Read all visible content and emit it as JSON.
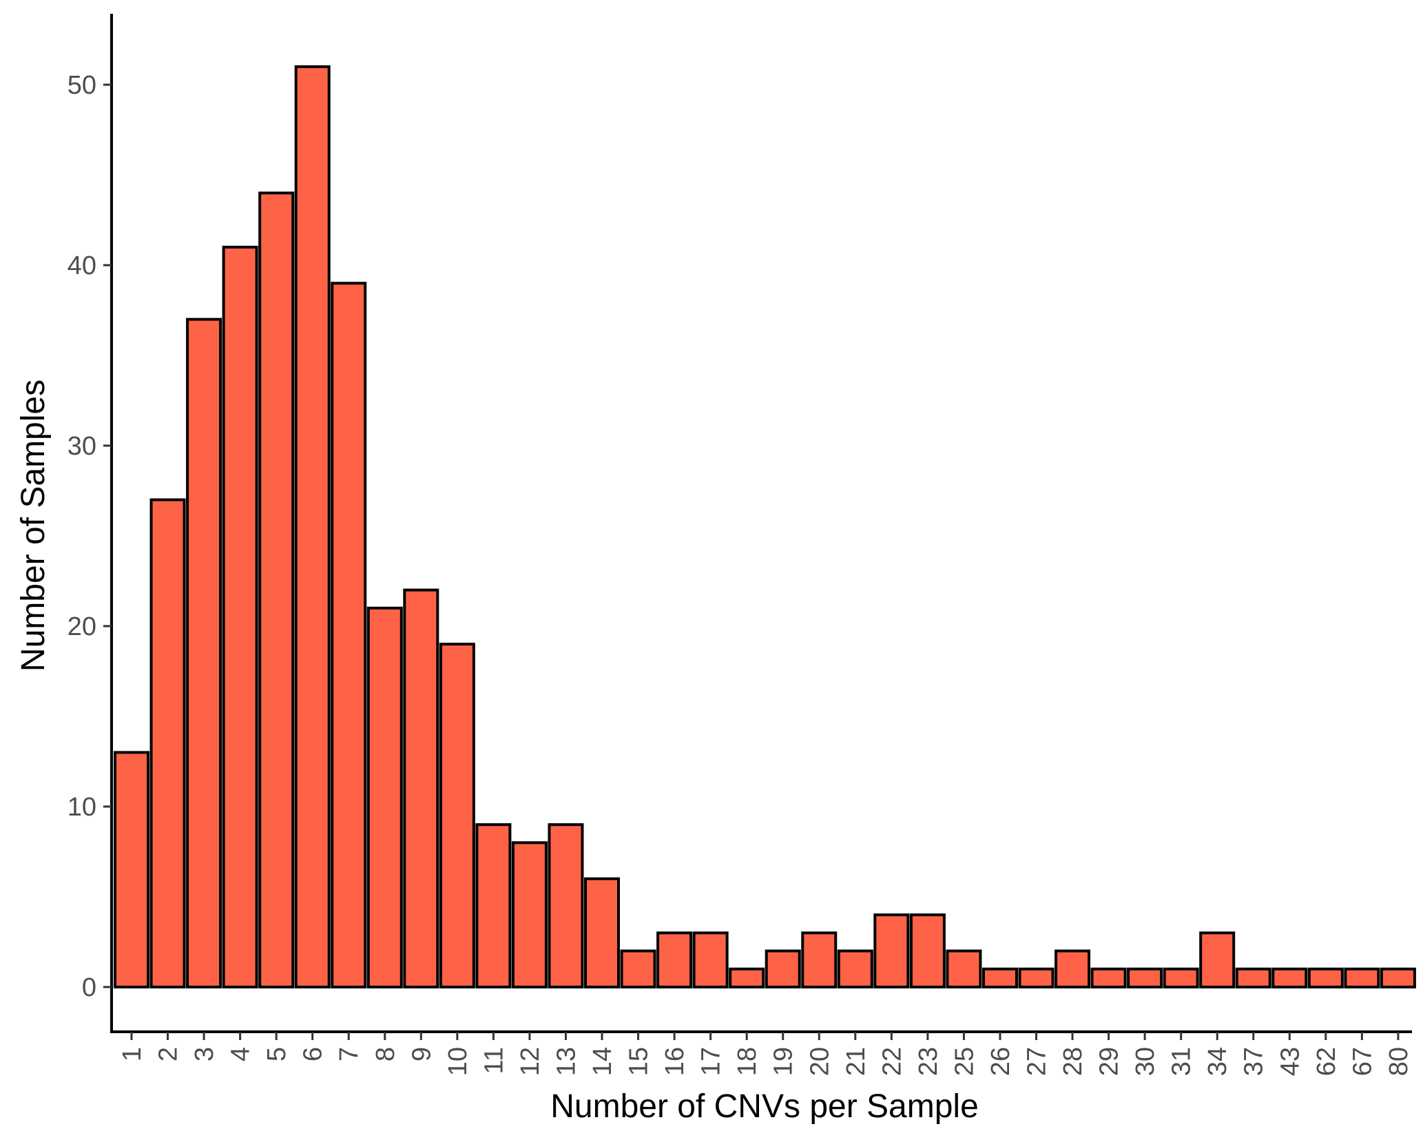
{
  "chart_data": {
    "type": "bar",
    "title": "",
    "xlabel": "Number of CNVs per Sample",
    "ylabel": "Number of Samples",
    "categories": [
      "1",
      "2",
      "3",
      "4",
      "5",
      "6",
      "7",
      "8",
      "9",
      "10",
      "11",
      "12",
      "13",
      "14",
      "15",
      "16",
      "17",
      "18",
      "19",
      "20",
      "21",
      "22",
      "23",
      "25",
      "26",
      "27",
      "28",
      "29",
      "30",
      "31",
      "34",
      "37",
      "43",
      "62",
      "67",
      "80"
    ],
    "values": [
      13,
      27,
      37,
      41,
      44,
      51,
      39,
      21,
      22,
      19,
      9,
      8,
      9,
      6,
      2,
      3,
      3,
      1,
      2,
      3,
      2,
      4,
      4,
      2,
      1,
      1,
      2,
      1,
      1,
      1,
      3,
      1,
      1,
      1,
      1,
      1
    ],
    "ylim": [
      0,
      53
    ],
    "yticks": [
      0,
      10,
      20,
      30,
      40,
      50
    ],
    "grid": false,
    "legend": "none",
    "colors": {
      "bar_fill": "#FF6347",
      "bar_stroke": "#000000",
      "axis": "#000000",
      "tick_text": "#4d4d4d"
    }
  }
}
